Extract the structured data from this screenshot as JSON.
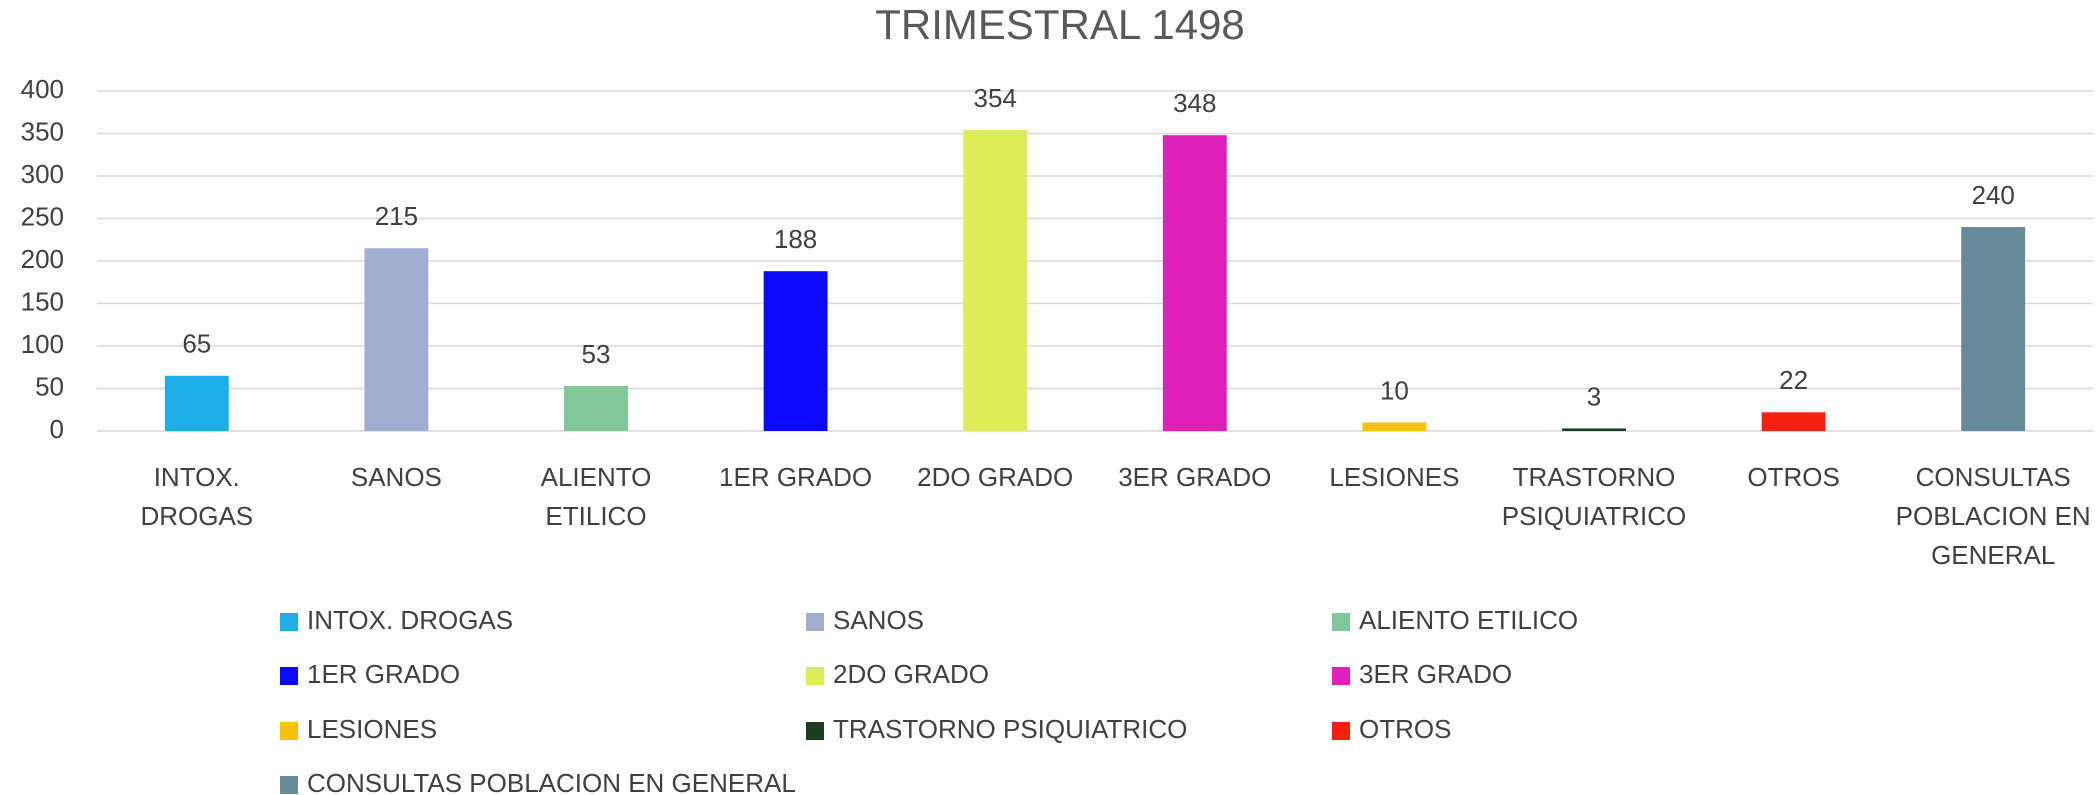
{
  "chart_data": {
    "type": "bar",
    "title": "TRIMESTRAL 1498",
    "categories": [
      "INTOX. DROGAS",
      "SANOS",
      "ALIENTO ETILICO",
      "1ER GRADO",
      "2DO GRADO",
      "3ER GRADO",
      "LESIONES",
      "TRASTORNO PSIQUIATRICO",
      "OTROS",
      "CONSULTAS POBLACION EN GENERAL"
    ],
    "values": [
      65,
      215,
      53,
      188,
      354,
      348,
      10,
      3,
      22,
      240
    ],
    "colors": [
      "#1eaee6",
      "#a0aed2",
      "#80c896",
      "#0a0aff",
      "#deec58",
      "#e020b8",
      "#f7c00a",
      "#1e3e22",
      "#f52010",
      "#658a9a"
    ],
    "ylim": [
      0,
      400
    ],
    "yticks": [
      0,
      50,
      100,
      150,
      200,
      250,
      300,
      350,
      400
    ],
    "grid": true,
    "legend": "bottom"
  }
}
